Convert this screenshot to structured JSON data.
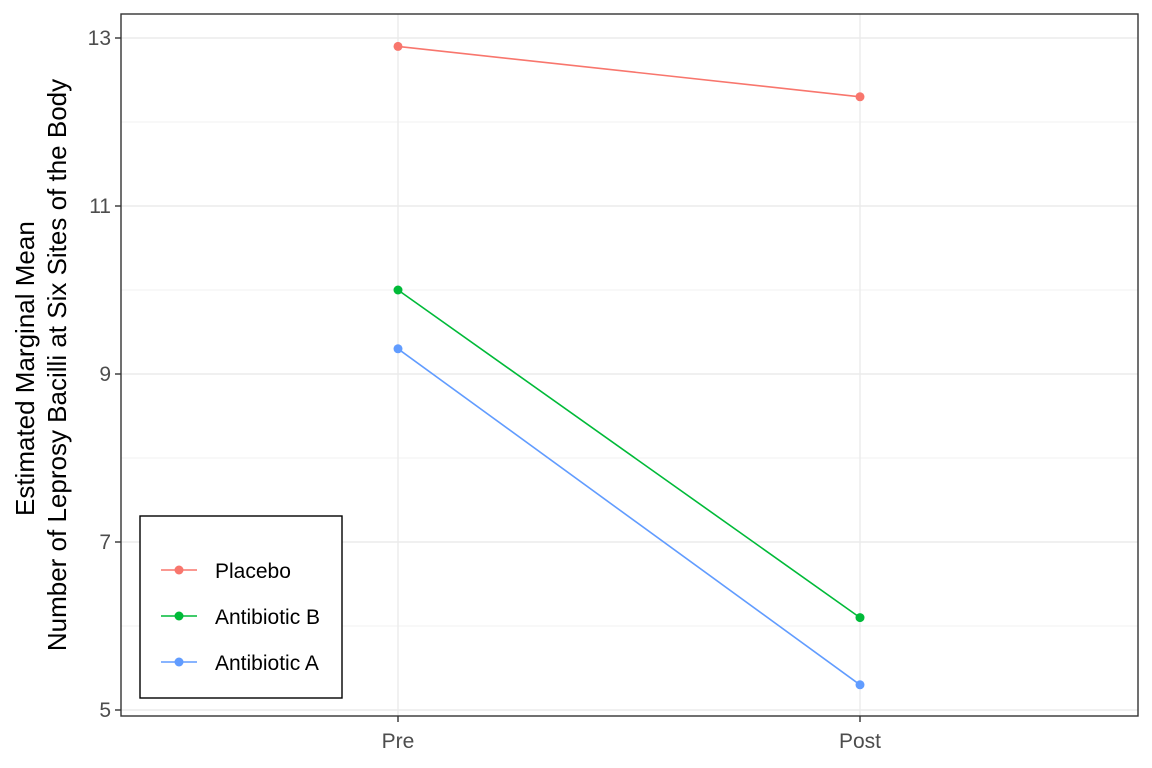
{
  "chart_data": {
    "type": "line",
    "title": "",
    "xlabel": "",
    "ylabel_lines": [
      "Estimated Marginal Mean",
      "Number of Leprosy Bacilli at Six Sites of the Body"
    ],
    "categories": [
      "Pre",
      "Post"
    ],
    "ylim": [
      5,
      13
    ],
    "yticks": [
      5,
      7,
      9,
      11,
      13
    ],
    "ytick_labels": [
      "5",
      "7",
      "9",
      "11",
      "13"
    ],
    "grid": true,
    "legend_position": "bottom-left inside",
    "series": [
      {
        "name": "Placebo",
        "color": "#F8766D",
        "values": [
          12.9,
          12.3
        ]
      },
      {
        "name": "Antibiotic B",
        "color": "#00BA38",
        "values": [
          10.0,
          6.1
        ]
      },
      {
        "name": "Antibiotic A",
        "color": "#619CFF",
        "values": [
          9.3,
          5.3
        ]
      }
    ]
  }
}
